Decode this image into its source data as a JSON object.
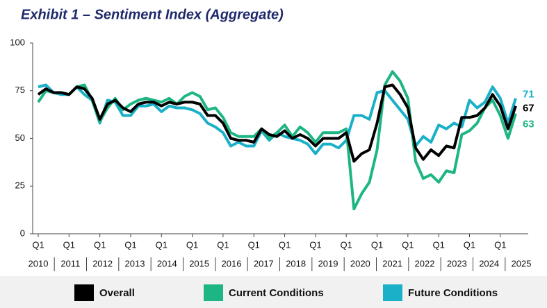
{
  "chart_data": {
    "type": "line",
    "title": "Exhibit 1 – Sentiment Index (Aggregate)",
    "categories": [
      "Q1",
      null,
      null,
      null,
      "Q1",
      null,
      null,
      null,
      "Q1",
      null,
      null,
      null,
      "Q1",
      null,
      null,
      null,
      "Q1",
      null,
      null,
      null,
      "Q1",
      null,
      null,
      null,
      "Q1",
      null,
      null,
      null,
      "Q1",
      null,
      null,
      null,
      "Q1",
      null,
      null,
      null,
      "Q1",
      null,
      null,
      null,
      "Q1",
      null,
      null,
      null,
      "Q1",
      null,
      null,
      null,
      "Q1",
      null,
      null,
      null,
      "Q1",
      null,
      null,
      null,
      "Q1",
      null,
      null,
      null,
      "Q1",
      null,
      null
    ],
    "years": [
      "2010",
      "2011",
      "2012",
      "2013",
      "2014",
      "2015",
      "2016",
      "2017",
      "2018",
      "2019",
      "2020",
      "2021",
      "2022",
      "2023",
      "2024",
      "2025"
    ],
    "series": [
      {
        "name": "Overall",
        "color": "#000000",
        "values": [
          73,
          76,
          74,
          74,
          73,
          77,
          76,
          71,
          60,
          68,
          70,
          66,
          64,
          68,
          69,
          69,
          67,
          69,
          68,
          69,
          69,
          68,
          62,
          62,
          58,
          50,
          49,
          49,
          48,
          55,
          52,
          51,
          54,
          50,
          52,
          50,
          46,
          50,
          50,
          50,
          53,
          38,
          42,
          44,
          58,
          77,
          78,
          73,
          66,
          45,
          39,
          44,
          41,
          46,
          45,
          61,
          61,
          62,
          66,
          73,
          67,
          55,
          67
        ]
      },
      {
        "name": "Current Conditions",
        "color": "#1db584",
        "values": [
          69,
          75,
          74,
          74,
          73,
          77,
          78,
          70,
          59,
          66,
          71,
          65,
          68,
          70,
          71,
          70,
          69,
          71,
          68,
          72,
          74,
          72,
          65,
          66,
          61,
          53,
          51,
          51,
          51,
          55,
          50,
          53,
          57,
          51,
          56,
          53,
          48,
          53,
          53,
          53,
          55,
          13,
          21,
          27,
          44,
          78,
          85,
          80,
          71,
          38,
          29,
          31,
          27,
          33,
          32,
          52,
          54,
          58,
          66,
          70,
          62,
          50,
          63
        ]
      },
      {
        "name": "Future Conditions",
        "color": "#1ab0c8",
        "values": [
          77,
          78,
          74,
          73,
          73,
          77,
          73,
          70,
          58,
          70,
          69,
          62,
          62,
          67,
          67,
          68,
          64,
          67,
          66,
          66,
          65,
          63,
          58,
          56,
          53,
          46,
          48,
          46,
          46,
          54,
          49,
          53,
          51,
          50,
          49,
          47,
          42,
          47,
          47,
          45,
          49,
          62,
          62,
          60,
          74,
          75,
          70,
          65,
          60,
          46,
          51,
          48,
          57,
          55,
          58,
          56,
          70,
          66,
          69,
          77,
          71,
          58,
          71
        ]
      }
    ],
    "ylim": [
      0,
      100
    ],
    "yticks": [
      0,
      25,
      50,
      75,
      100
    ],
    "grid": false
  }
}
